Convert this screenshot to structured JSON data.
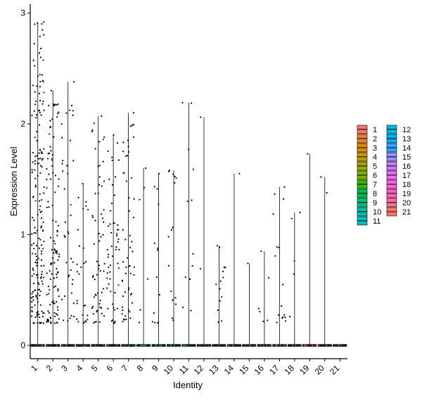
{
  "chart_data": {
    "type": "violin",
    "xlabel": "Identity",
    "ylabel": "Expression Level",
    "categories": [
      "1",
      "2",
      "3",
      "4",
      "5",
      "6",
      "7",
      "8",
      "9",
      "10",
      "11",
      "12",
      "13",
      "14",
      "15",
      "16",
      "17",
      "18",
      "19",
      "20",
      "21"
    ],
    "yticks": [
      0,
      1,
      2,
      3
    ],
    "ylim": [
      -0.12,
      3.08
    ],
    "grid": false,
    "legend_position": "right",
    "legend_columns": 2,
    "series": [
      {
        "name": "1",
        "color": "#F8766D",
        "max": 2.92,
        "zero_frac": 0.6,
        "n": 180
      },
      {
        "name": "2",
        "color": "#EA8331",
        "max": 2.3,
        "zero_frac": 0.7,
        "n": 110
      },
      {
        "name": "3",
        "color": "#D89000",
        "max": 2.38,
        "zero_frac": 0.82,
        "n": 40
      },
      {
        "name": "4",
        "color": "#C09B00",
        "max": 1.46,
        "zero_frac": 0.85,
        "n": 28
      },
      {
        "name": "5",
        "color": "#A3A500",
        "max": 2.07,
        "zero_frac": 0.8,
        "n": 60
      },
      {
        "name": "6",
        "color": "#7CAE00",
        "max": 1.9,
        "zero_frac": 0.8,
        "n": 55
      },
      {
        "name": "7",
        "color": "#39B600",
        "max": 2.1,
        "zero_frac": 0.8,
        "n": 55
      },
      {
        "name": "8",
        "color": "#00BB4E",
        "max": 1.6,
        "zero_frac": 0.92,
        "n": 6
      },
      {
        "name": "9",
        "color": "#00BF7D",
        "max": 1.55,
        "zero_frac": 0.88,
        "n": 14
      },
      {
        "name": "10",
        "color": "#00C1A3",
        "max": 1.58,
        "zero_frac": 0.88,
        "n": 16
      },
      {
        "name": "11",
        "color": "#00BFC4",
        "max": 2.19,
        "zero_frac": 0.9,
        "n": 12
      },
      {
        "name": "12",
        "color": "#00BAE0",
        "max": 2.06,
        "zero_frac": 0.95,
        "n": 2
      },
      {
        "name": "13",
        "color": "#00B0F6",
        "max": 0.9,
        "zero_frac": 0.9,
        "n": 14
      },
      {
        "name": "14",
        "color": "#35A2FF",
        "max": 1.55,
        "zero_frac": 0.97,
        "n": 1
      },
      {
        "name": "15",
        "color": "#9590FF",
        "max": 0.74,
        "zero_frac": 0.97,
        "n": 1
      },
      {
        "name": "16",
        "color": "#C77CFF",
        "max": 0.85,
        "zero_frac": 0.93,
        "n": 6
      },
      {
        "name": "17",
        "color": "#E76BF3",
        "max": 1.43,
        "zero_frac": 0.88,
        "n": 16
      },
      {
        "name": "18",
        "color": "#FA62DB",
        "max": 1.2,
        "zero_frac": 0.93,
        "n": 5
      },
      {
        "name": "19",
        "color": "#FF62BC",
        "max": 1.73,
        "zero_frac": 0.97,
        "n": 1
      },
      {
        "name": "20",
        "color": "#FF6C91",
        "max": 1.52,
        "zero_frac": 0.95,
        "n": 2
      },
      {
        "name": "21",
        "color": "#F8766D",
        "max": 0.0,
        "zero_frac": 1.0,
        "n": 0
      }
    ]
  }
}
